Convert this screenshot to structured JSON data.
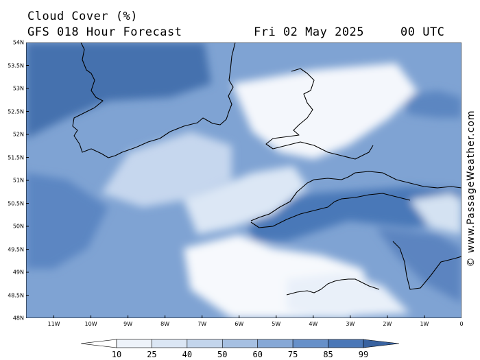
{
  "header": {
    "title": "Cloud Cover (%)",
    "forecast": "GFS 018 Hour Forecast",
    "date": "Fri 02 May 2025",
    "time": "00 UTC"
  },
  "credit": "© www.PassageWeather.com",
  "map": {
    "lat_labels": [
      "54N",
      "53.5N",
      "53N",
      "52.5N",
      "52N",
      "51.5N",
      "51N",
      "50.5N",
      "50N",
      "49.5N",
      "49N",
      "48.5N",
      "48N"
    ],
    "lon_labels": [
      "11W",
      "10W",
      "9W",
      "8W",
      "7W",
      "6W",
      "5W",
      "4W",
      "3W",
      "2W",
      "1W",
      "0"
    ],
    "lat_range": [
      48,
      54
    ],
    "lon_range": [
      -11.75,
      0
    ]
  },
  "colorbar": {
    "labels": [
      "10",
      "25",
      "40",
      "50",
      "60",
      "75",
      "85",
      "99"
    ],
    "colors": [
      "#ffffff",
      "#eef3fa",
      "#dbe6f4",
      "#c3d5ec",
      "#a6c0e2",
      "#86a8d6",
      "#6690c9",
      "#4a77b7",
      "#3862a0"
    ]
  }
}
